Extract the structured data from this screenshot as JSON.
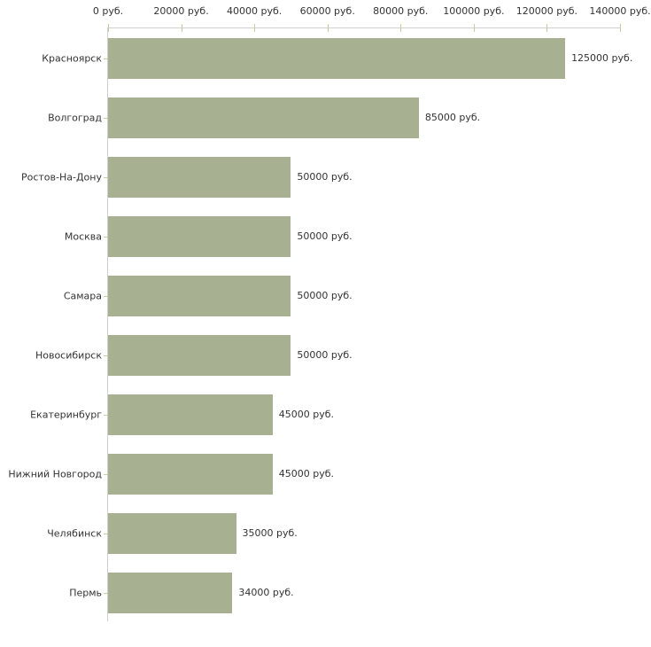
{
  "chart_data": {
    "type": "bar",
    "orientation": "horizontal",
    "title": "",
    "xlabel": "",
    "ylabel": "",
    "unit": "руб.",
    "grid": false,
    "legend_position": "none",
    "xlim": [
      0,
      140000
    ],
    "x_ticks": [
      0,
      20000,
      40000,
      60000,
      80000,
      100000,
      120000,
      140000
    ],
    "x_tick_labels": [
      "0 руб.",
      "20000 руб.",
      "40000 руб.",
      "60000 руб.",
      "80000 руб.",
      "100000 руб.",
      "120000 руб.",
      "140000 руб."
    ],
    "categories": [
      "Красноярск",
      "Волгоград",
      "Ростов-На-Дону",
      "Москва",
      "Самара",
      "Новосибирск",
      "Екатеринбург",
      "Нижний Новгород",
      "Челябинск",
      "Пермь"
    ],
    "values": [
      125000,
      85000,
      50000,
      50000,
      50000,
      50000,
      45000,
      45000,
      35000,
      34000
    ],
    "value_labels": [
      "125000 руб.",
      "85000 руб.",
      "50000 руб.",
      "50000 руб.",
      "50000 руб.",
      "50000 руб.",
      "45000 руб.",
      "45000 руб.",
      "35000 руб.",
      "34000 руб."
    ],
    "colors": {
      "bar": "#a8b092",
      "axis": "#d0d0d0",
      "tick": "#c9cba1",
      "text": "#333333",
      "background": "#ffffff"
    }
  }
}
